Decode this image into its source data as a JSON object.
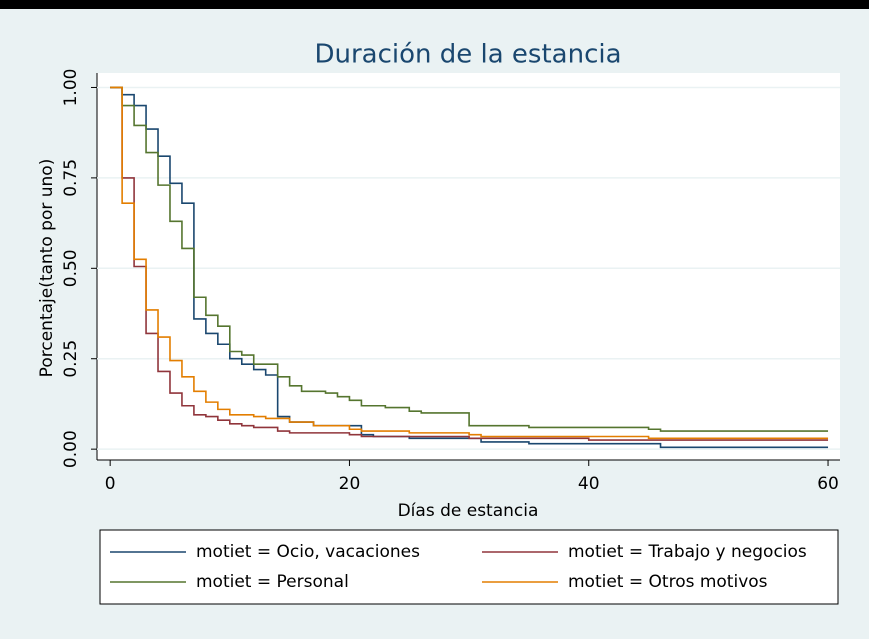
{
  "chart_data": {
    "type": "step",
    "title": "Duración de la estancia",
    "x_label": "Días de estancia",
    "y_label": "Porcentaje(tanto por uno)",
    "xlim": [
      -1.1,
      61
    ],
    "ylim": [
      -0.03,
      1.04
    ],
    "xticks": [
      0,
      20,
      40,
      60
    ],
    "yticks": [
      {
        "value": 0,
        "label": "0.00"
      },
      {
        "value": 0.25,
        "label": "0.25"
      },
      {
        "value": 0.5,
        "label": "0.50"
      },
      {
        "value": 0.75,
        "label": "0.75"
      },
      {
        "value": 1,
        "label": "1.00"
      }
    ],
    "grid": true,
    "series": [
      {
        "name": "motiet = Ocio, vacaciones",
        "color": "#1a476f",
        "x": [
          0,
          1,
          2,
          3,
          4,
          5,
          6,
          7,
          8,
          9,
          10,
          11,
          12,
          13,
          14,
          15,
          17,
          21,
          22,
          25,
          31,
          35,
          46,
          60
        ],
        "values": [
          1,
          0.98,
          0.95,
          0.885,
          0.81,
          0.735,
          0.68,
          0.36,
          0.32,
          0.29,
          0.25,
          0.235,
          0.22,
          0.205,
          0.09,
          0.075,
          0.065,
          0.04,
          0.035,
          0.03,
          0.02,
          0.015,
          0.005,
          0.005
        ]
      },
      {
        "name": "motiet = Trabajo y negocios",
        "color": "#90353b",
        "x": [
          0,
          1,
          2,
          3,
          4,
          5,
          6,
          7,
          8,
          9,
          10,
          11,
          12,
          14,
          15,
          20,
          21,
          30,
          40,
          60
        ],
        "values": [
          1,
          0.75,
          0.505,
          0.32,
          0.215,
          0.155,
          0.12,
          0.095,
          0.09,
          0.08,
          0.07,
          0.065,
          0.06,
          0.05,
          0.045,
          0.04,
          0.035,
          0.03,
          0.025,
          0.025
        ]
      },
      {
        "name": "motiet = Personal",
        "color": "#55752f",
        "x": [
          0,
          1,
          2,
          3,
          4,
          5,
          6,
          7,
          8,
          9,
          10,
          11,
          12,
          14,
          15,
          16,
          18,
          19,
          20,
          21,
          23,
          25,
          26,
          30,
          35,
          45,
          46,
          60
        ],
        "values": [
          1,
          0.95,
          0.895,
          0.82,
          0.73,
          0.63,
          0.555,
          0.42,
          0.37,
          0.34,
          0.27,
          0.26,
          0.235,
          0.2,
          0.175,
          0.16,
          0.155,
          0.145,
          0.135,
          0.12,
          0.115,
          0.105,
          0.1,
          0.065,
          0.06,
          0.055,
          0.05,
          0.05
        ]
      },
      {
        "name": "motiet = Otros motivos",
        "color": "#e37e00",
        "x": [
          0,
          1,
          2,
          3,
          4,
          5,
          6,
          7,
          8,
          9,
          10,
          12,
          13,
          15,
          17,
          20,
          21,
          25,
          30,
          31,
          45,
          60
        ],
        "values": [
          1,
          0.68,
          0.525,
          0.385,
          0.31,
          0.245,
          0.2,
          0.16,
          0.13,
          0.11,
          0.095,
          0.09,
          0.085,
          0.075,
          0.065,
          0.055,
          0.05,
          0.045,
          0.04,
          0.035,
          0.03,
          0.03
        ]
      }
    ]
  }
}
